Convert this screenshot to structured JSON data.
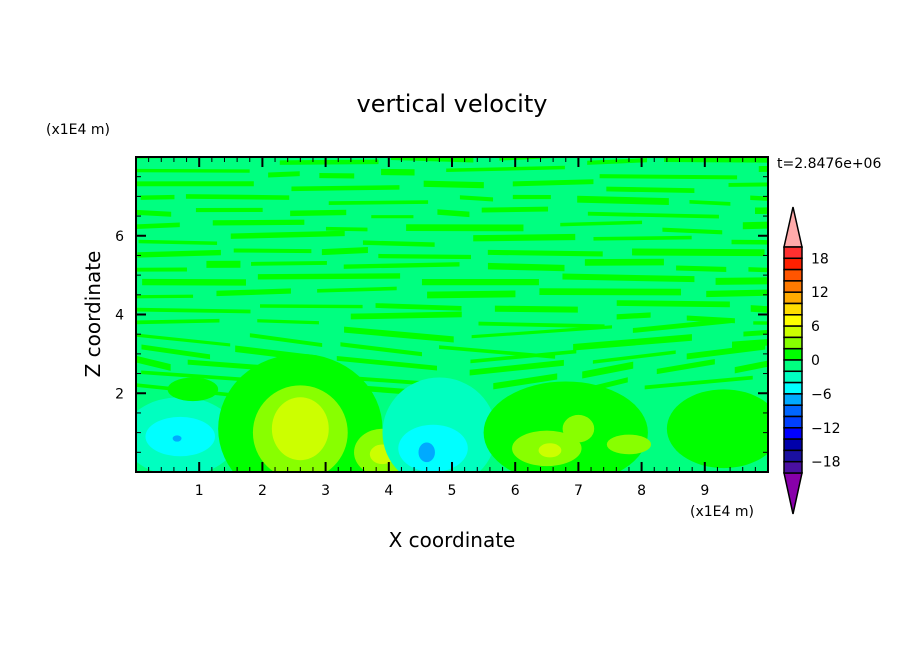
{
  "chart_data": {
    "type": "heatmap",
    "title": "vertical velocity",
    "xlabel": "X coordinate",
    "ylabel": "Z coordinate",
    "x_scale_label": "(x1E4 m)",
    "y_scale_label": "(x1E4 m)",
    "time_label": "t=2.8476e+06",
    "xlim": [
      0,
      10
    ],
    "ylim": [
      0,
      8
    ],
    "x_ticks": [
      "1",
      "2",
      "3",
      "4",
      "5",
      "6",
      "7",
      "8",
      "9"
    ],
    "y_ticks": [
      "2",
      "4",
      "6"
    ],
    "colorbar": {
      "levels_min": -20,
      "levels_max": 20,
      "step": 2,
      "tick_labels": [
        "18",
        "12",
        "6",
        "0",
        "-6",
        "-12",
        "-18"
      ],
      "tick_values": [
        18,
        12,
        6,
        0,
        -6,
        -12,
        -18
      ],
      "colors_top_to_bottom": [
        "#ff3030",
        "#ff2000",
        "#ff5500",
        "#ff7a00",
        "#ffaa00",
        "#ffdd00",
        "#ffff00",
        "#ccff00",
        "#88ff00",
        "#00ff00",
        "#00ff80",
        "#00ffc0",
        "#00ffff",
        "#00aaff",
        "#0066ff",
        "#0040ff",
        "#0000ff",
        "#0000aa",
        "#1a10a0",
        "#4a10a0"
      ],
      "over_color": "#ffaaaa",
      "under_color": "#8800aa"
    },
    "background_level_color": "#00ff80",
    "features": [
      {
        "x": 0.7,
        "z": 0.9,
        "rx": 0.9,
        "rz": 1.0,
        "color": "#00ffc0"
      },
      {
        "x": 0.7,
        "z": 0.9,
        "rx": 0.55,
        "rz": 0.5,
        "color": "#00ffff"
      },
      {
        "x": 0.65,
        "z": 0.85,
        "rx": 0.07,
        "rz": 0.08,
        "color": "#00aaff"
      },
      {
        "x": 0.9,
        "z": 2.1,
        "rx": 0.4,
        "rz": 0.3,
        "color": "#00ff00"
      },
      {
        "x": 2.6,
        "z": 1.1,
        "rx": 1.3,
        "rz": 1.9,
        "color": "#00ff00"
      },
      {
        "x": 2.6,
        "z": 1.0,
        "rx": 0.75,
        "rz": 1.2,
        "color": "#88ff00"
      },
      {
        "x": 2.6,
        "z": 1.1,
        "rx": 0.45,
        "rz": 0.8,
        "color": "#ccff00"
      },
      {
        "x": 3.9,
        "z": 0.5,
        "rx": 0.45,
        "rz": 0.6,
        "color": "#88ff00"
      },
      {
        "x": 3.9,
        "z": 0.45,
        "rx": 0.2,
        "rz": 0.25,
        "color": "#ccff00"
      },
      {
        "x": 4.8,
        "z": 1.0,
        "rx": 0.9,
        "rz": 1.4,
        "color": "#00ffc0"
      },
      {
        "x": 4.7,
        "z": 0.6,
        "rx": 0.55,
        "rz": 0.6,
        "color": "#00ffff"
      },
      {
        "x": 4.6,
        "z": 0.5,
        "rx": 0.13,
        "rz": 0.25,
        "color": "#00aaff"
      },
      {
        "x": 6.8,
        "z": 1.0,
        "rx": 1.3,
        "rz": 1.3,
        "color": "#00ff00"
      },
      {
        "x": 6.5,
        "z": 0.6,
        "rx": 0.55,
        "rz": 0.45,
        "color": "#88ff00"
      },
      {
        "x": 6.55,
        "z": 0.55,
        "rx": 0.18,
        "rz": 0.18,
        "color": "#ccff00"
      },
      {
        "x": 7.0,
        "z": 1.1,
        "rx": 0.25,
        "rz": 0.35,
        "color": "#88ff00"
      },
      {
        "x": 7.8,
        "z": 0.7,
        "rx": 0.35,
        "rz": 0.25,
        "color": "#88ff00"
      },
      {
        "x": 9.3,
        "z": 1.1,
        "rx": 0.9,
        "rz": 1.0,
        "color": "#00ff00"
      }
    ]
  }
}
